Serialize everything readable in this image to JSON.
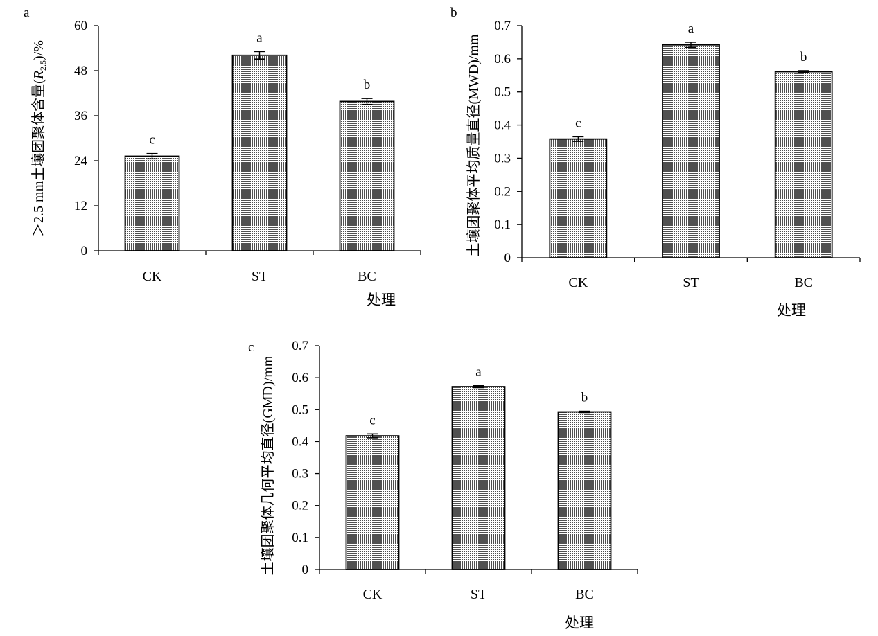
{
  "chart_data": [
    {
      "panel": "a",
      "type": "bar",
      "categories": [
        "CK",
        "ST",
        "BC"
      ],
      "values": [
        25.2,
        52.1,
        39.8
      ],
      "errors": [
        0.7,
        1.0,
        0.8
      ],
      "significance": [
        "c",
        "a",
        "b"
      ],
      "xlabel": "处理",
      "ylabel_prefix": "＞2.5 mm土壤团聚体含量(",
      "ylabel_var": "R",
      "ylabel_sub": "2.5",
      "ylabel_suffix": ")/%",
      "ylim": [
        0,
        60
      ],
      "yticks": [
        "0",
        "12",
        "24",
        "36",
        "48",
        "60"
      ],
      "grid": false,
      "bar_color": "#8a8a8a"
    },
    {
      "panel": "b",
      "type": "bar",
      "categories": [
        "CK",
        "ST",
        "BC"
      ],
      "values": [
        0.358,
        0.642,
        0.561
      ],
      "errors": [
        0.007,
        0.008,
        0.003
      ],
      "significance": [
        "c",
        "a",
        "b"
      ],
      "xlabel": "处理",
      "ylabel": "土壤团聚体平均质量直径(MWD)/mm",
      "ylim": [
        0,
        0.7
      ],
      "yticks": [
        "0",
        "0.1",
        "0.2",
        "0.3",
        "0.4",
        "0.5",
        "0.6",
        "0.7"
      ],
      "grid": false,
      "bar_color": "#8a8a8a"
    },
    {
      "panel": "c",
      "type": "bar",
      "categories": [
        "CK",
        "ST",
        "BC"
      ],
      "values": [
        0.418,
        0.572,
        0.493
      ],
      "errors": [
        0.006,
        0.003,
        0.002
      ],
      "significance": [
        "c",
        "a",
        "b"
      ],
      "xlabel": "处理",
      "ylabel": "土壤团聚体几何平均直径(GMD)/mm",
      "ylim": [
        0,
        0.7
      ],
      "yticks": [
        "0",
        "0.1",
        "0.2",
        "0.3",
        "0.4",
        "0.5",
        "0.6",
        "0.7"
      ],
      "grid": false,
      "bar_color": "#8a8a8a"
    }
  ]
}
